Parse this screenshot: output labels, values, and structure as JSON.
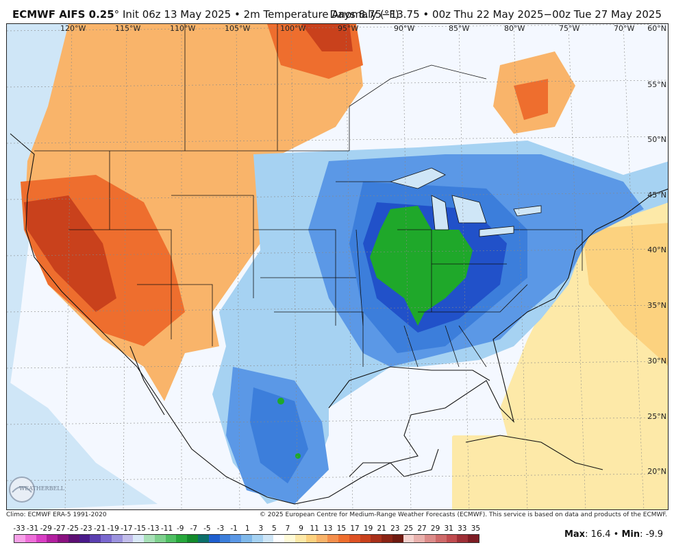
{
  "header": {
    "model": "ECMWF AIFS 0.25",
    "degree": "°",
    "init_text": " Init 06z 13 May 2025 • 2m Temperature Anomaly (°F)",
    "valid_text": "Days 8.75−13.75 • 00z Thu 22 May 2025−00z Tue 27 May 2025"
  },
  "map": {
    "lon_labels": [
      "120°W",
      "115°W",
      "110°W",
      "105°W",
      "100°W",
      "95°W",
      "90°W",
      "85°W",
      "80°W",
      "75°W",
      "70°W"
    ],
    "lat_labels": [
      "60°N",
      "55°N",
      "50°N",
      "45°N",
      "40°N",
      "35°N",
      "30°N",
      "25°N",
      "20°N"
    ],
    "colors": {
      "ocean_neutral": "#f4f8ff",
      "warm_light": "#fde9a8",
      "warm_mid": "#f9b46a",
      "warm_strong": "#ee6e2e",
      "warm_extreme": "#c9411c",
      "cool_light": "#cfe6f7",
      "cool_mid": "#7fb8ea",
      "cool_strong": "#3c7edb",
      "cool_deep": "#2151c9",
      "green_core": "#1fa82a"
    }
  },
  "footer": {
    "climo": "Climo: ECMWF ERA-5 1991-2020",
    "copyright": "© 2025 European Centre for Medium-Range Weather Forecasts (ECMWF). This service is based on data and products of the ECMWF.",
    "logo_text": "WEATHERBELL"
  },
  "scale": {
    "labels": [
      "-33",
      "-31",
      "-29",
      "-27",
      "-25",
      "-23",
      "-21",
      "-19",
      "-17",
      "-15",
      "-13",
      "-11",
      "-9",
      "-7",
      "-5",
      "-3",
      "-1",
      "1",
      "3",
      "5",
      "7",
      "9",
      "11",
      "13",
      "15",
      "17",
      "19",
      "21",
      "23",
      "25",
      "27",
      "29",
      "31",
      "33",
      "35"
    ],
    "colors": [
      "#f7a1e8",
      "#ee6fd9",
      "#d93fc4",
      "#b21f9f",
      "#8a1180",
      "#5d0f73",
      "#4a1a8a",
      "#5b3fb0",
      "#7a68cf",
      "#9c93de",
      "#c2bdea",
      "#d9e8f7",
      "#a8e0b8",
      "#7fd18f",
      "#4fbf63",
      "#27a83c",
      "#138a2c",
      "#0c6f6a",
      "#1f5fcf",
      "#3c7edb",
      "#5b98e6",
      "#7fb8ea",
      "#a6d2f2",
      "#cfe6f7",
      "#ffffff",
      "#fffbd9",
      "#fde9a8",
      "#fcd27f",
      "#f9b46a",
      "#f48f4c",
      "#ee6e2e",
      "#de5224",
      "#c9411c",
      "#a8301a",
      "#8a2314",
      "#6e1a10",
      "#f5d3cf",
      "#e9b1ad",
      "#dc8c8a",
      "#cf6a6a",
      "#c04b4f",
      "#9e2f36",
      "#7d1c24"
    ],
    "max_label": "Max",
    "max_value": ": 16.4 • ",
    "min_label": "Min",
    "min_value": ": -9.9"
  }
}
